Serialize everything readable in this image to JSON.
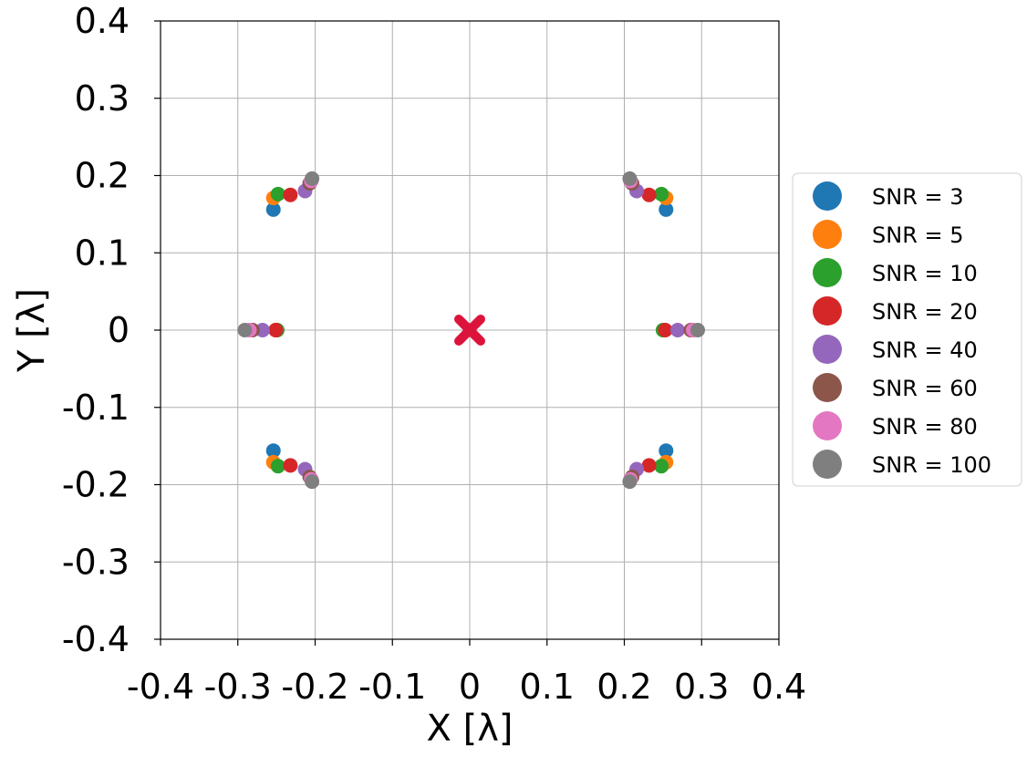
{
  "chart_data": {
    "type": "scatter",
    "xlabel": "X [λ]",
    "ylabel": "Y [λ]",
    "xlim": [
      -0.4,
      0.4
    ],
    "ylim": [
      -0.4,
      0.4
    ],
    "grid": true,
    "legend_position": "right",
    "xticks": [
      "-0.4",
      "-0.3",
      "-0.2",
      "-0.1",
      "0",
      "0.1",
      "0.2",
      "0.3",
      "0.4"
    ],
    "yticks": [
      "0.4",
      "0.3",
      "0.2",
      "0.1",
      "0",
      "-0.1",
      "-0.2",
      "-0.3",
      "-0.4"
    ],
    "origin_marker": {
      "x": 0,
      "y": 0,
      "color": "#dc143c"
    },
    "series": [
      {
        "name": "SNR = 3",
        "color": "#1f77b4",
        "points": [
          [
            -0.254,
            0.156
          ],
          [
            0.254,
            0.156
          ],
          [
            -0.254,
            -0.156
          ],
          [
            0.254,
            -0.156
          ]
        ]
      },
      {
        "name": "SNR = 5",
        "color": "#ff7f0e",
        "points": [
          [
            -0.254,
            0.171
          ],
          [
            0.254,
            0.171
          ],
          [
            -0.254,
            -0.171
          ],
          [
            0.254,
            -0.171
          ],
          [
            -0.251,
            0.0
          ],
          [
            0.252,
            0.0
          ]
        ]
      },
      {
        "name": "SNR = 10",
        "color": "#2ca02c",
        "points": [
          [
            -0.248,
            0.176
          ],
          [
            0.248,
            0.176
          ],
          [
            -0.248,
            -0.176
          ],
          [
            0.248,
            -0.176
          ],
          [
            -0.249,
            0.0
          ],
          [
            0.25,
            0.0
          ]
        ]
      },
      {
        "name": "SNR = 20",
        "color": "#d62728",
        "points": [
          [
            -0.232,
            0.175
          ],
          [
            0.232,
            0.175
          ],
          [
            -0.232,
            -0.175
          ],
          [
            0.232,
            -0.175
          ],
          [
            -0.251,
            0.0
          ],
          [
            0.253,
            0.0
          ]
        ]
      },
      {
        "name": "SNR = 40",
        "color": "#9467bd",
        "points": [
          [
            -0.213,
            0.18
          ],
          [
            0.216,
            0.18
          ],
          [
            -0.213,
            -0.18
          ],
          [
            0.216,
            -0.18
          ],
          [
            -0.268,
            0.0
          ],
          [
            0.269,
            0.0
          ]
        ]
      },
      {
        "name": "SNR = 60",
        "color": "#8c564b",
        "points": [
          [
            -0.207,
            0.19
          ],
          [
            0.21,
            0.19
          ],
          [
            -0.207,
            -0.19
          ],
          [
            0.21,
            -0.19
          ],
          [
            -0.281,
            0.0
          ],
          [
            0.286,
            0.0
          ]
        ]
      },
      {
        "name": "SNR = 80",
        "color": "#e377c2",
        "points": [
          [
            -0.205,
            0.193
          ],
          [
            0.208,
            0.193
          ],
          [
            -0.205,
            -0.193
          ],
          [
            0.208,
            -0.193
          ],
          [
            -0.285,
            0.0
          ],
          [
            0.289,
            0.0
          ]
        ]
      },
      {
        "name": "SNR = 100",
        "color": "#7f7f7f",
        "points": [
          [
            -0.204,
            0.196
          ],
          [
            0.207,
            0.196
          ],
          [
            -0.204,
            -0.196
          ],
          [
            0.207,
            -0.196
          ],
          [
            -0.291,
            0.0
          ],
          [
            0.295,
            0.0
          ]
        ]
      }
    ]
  }
}
